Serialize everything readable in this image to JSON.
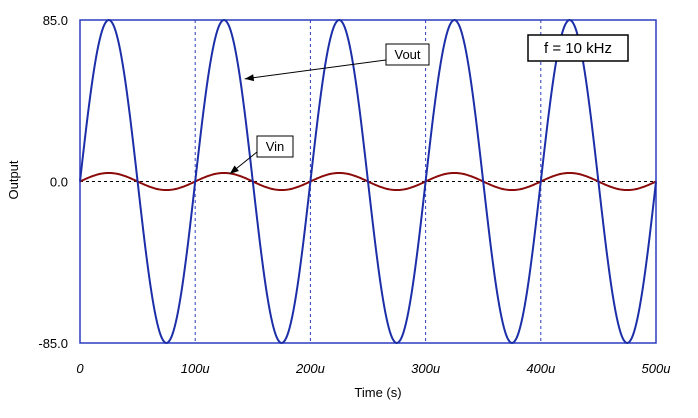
{
  "chart_data": {
    "type": "line",
    "title": "",
    "xlabel": "Time (s)",
    "ylabel": "Output",
    "xlim": [
      0,
      0.0005
    ],
    "ylim": [
      -85,
      85
    ],
    "x_ticks": [
      0,
      0.0001,
      0.0002,
      0.0003,
      0.0004,
      0.0005
    ],
    "x_tick_labels": [
      "0",
      "100u",
      "200u",
      "300u",
      "400u",
      "500u"
    ],
    "y_ticks": [
      -85,
      0,
      85
    ],
    "y_tick_labels": [
      "-85.0",
      "0.0",
      "85.0"
    ],
    "grid": "dashed vertical at x ticks, dashed horizontal at 0",
    "series": [
      {
        "name": "Vout",
        "color": "#1c2fa8",
        "amplitude": 85,
        "frequency_hz": 10000,
        "phase_deg": 0
      },
      {
        "name": "Vin",
        "color": "#8b0a0a",
        "amplitude": 4.5,
        "frequency_hz": 10000,
        "phase_deg": 0
      }
    ],
    "annotations": [
      {
        "text": "Vout",
        "points_to": {
          "x": 0.000143,
          "y": 54
        }
      },
      {
        "text": "Vin",
        "points_to": {
          "x": 0.00013,
          "y": 4
        }
      },
      {
        "text": "f = 10 kHz",
        "boxed": true
      }
    ]
  }
}
